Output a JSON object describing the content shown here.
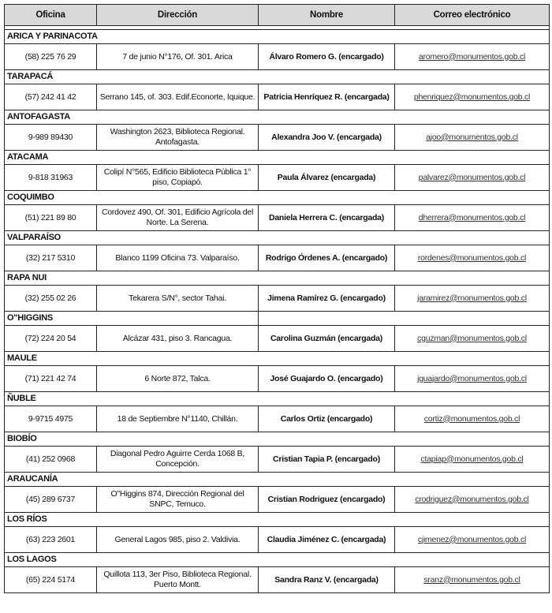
{
  "headers": [
    "Oficina",
    "Dirección",
    "Nombre",
    "Correo electrónico"
  ],
  "offices": [
    {
      "region": "ARICA Y PARINACOTA",
      "phone": "(58) 225 76 29",
      "address": "7 de junio N°176, Of. 301. Arica",
      "name": "Álvaro Romero G. (encargado)",
      "email": "aromero@monumentos.gob.cl"
    },
    {
      "region": "TARAPACÁ",
      "phone": "(57) 242 41 42",
      "address": "Serrano 145, of. 303. Edif.Econorte, Iquique.",
      "name": "Patricia Henríquez R. (encargada)",
      "email": "phenriquez@monumentos.gob.cl"
    },
    {
      "region": "ANTOFAGASTA",
      "phone": "9-989 89430",
      "address": "Washington 2623, Biblioteca Regional. Antofagasta.",
      "name": "Alexandra Joo V. (encargada)",
      "email": "ajoo@monumentos.gob.cl"
    },
    {
      "region": "ATACAMA",
      "phone": "9-818 31963",
      "address": "Colipí N°565, Edificio Biblioteca Pública 1° piso, Copiapó.",
      "name": "Paula Álvarez (encargada)",
      "email": "palvarez@monumentos.gob.cl"
    },
    {
      "region": "COQUIMBO",
      "phone": "(51) 221 89 80",
      "address": "Cordovez 490, Of. 301, Edificio Agrícola del Norte. La Serena.",
      "name": "Daniela Herrera C. (encargada)",
      "email": "dherrera@monumentos.gob.cl"
    },
    {
      "region": "VALPARAÍSO",
      "phone": "(32) 217 5310",
      "address": "Blanco 1199 Oficina 73. Valparaíso.",
      "name": "Rodrigo Órdenes A. (encargado)",
      "email": "rordenes@monumentos.gob.cl"
    },
    {
      "region": "RAPA NUI",
      "phone": "(32) 255 02 26",
      "address": "Tekarera S/N°, sector Tahai.",
      "name": "Jimena Ramírez G. (encargado)",
      "email": "jaramirez@monumentos.gob.cl"
    },
    {
      "region": "O\"HIGGINS",
      "phone": "(72) 224 20 54",
      "address": "Alcázar 431, piso 3. Rancagua.",
      "name": "Carolina Guzmán (encargada)",
      "email": "cguzman@monumentos.gob.cl",
      "split_header": true
    },
    {
      "region": "MAULE",
      "phone": "(71) 221 42 74",
      "address": "6 Norte 872, Talca.",
      "name": "José  Guajardo O. (encargado)",
      "email": "jguajardo@monumentos.gob.cl"
    },
    {
      "region": "ÑUBLE",
      "phone": "9-9715 4975",
      "address": "18 de Septiembre N°1140, Chillán.",
      "name": "Carlos Ortiz (encargado)",
      "email": "cortiz@monumentos.gob.cl"
    },
    {
      "region": "BIOBÍO",
      "phone": "(41) 252 0968",
      "address": "Diagonal Pedro Aguirre Cerda 1068 B, Concepción.",
      "name": "Cristian Tapia P. (encargado)",
      "email": "ctapiap@monumentos.gob.cl"
    },
    {
      "region": "ARAUCANÍA",
      "phone": "(45) 289 6737",
      "address": "O\"Higgins 874, Dirección Regional del SNPC, Temuco.",
      "name": "Cristian Rodriguez (encargado)",
      "email": "crodriguez@monumentos.gob.cl"
    },
    {
      "region": "LOS RÍOS",
      "phone": "(63) 223 2601",
      "address": "General Lagos 985, piso 2. Valdivia.",
      "name": "Claudia Jiménez C. (encargada)",
      "email": "cjimenez@monumentos.gob.cl"
    },
    {
      "region": "LOS LAGOS",
      "phone": "(65) 224 5174",
      "address": "Quillota 113, 3er Piso, Biblioteca Regional. Puerto Montt.",
      "name": "Sandra Ranz V. (encargada)",
      "email": "sranz@monumentos.gob.cl"
    }
  ]
}
